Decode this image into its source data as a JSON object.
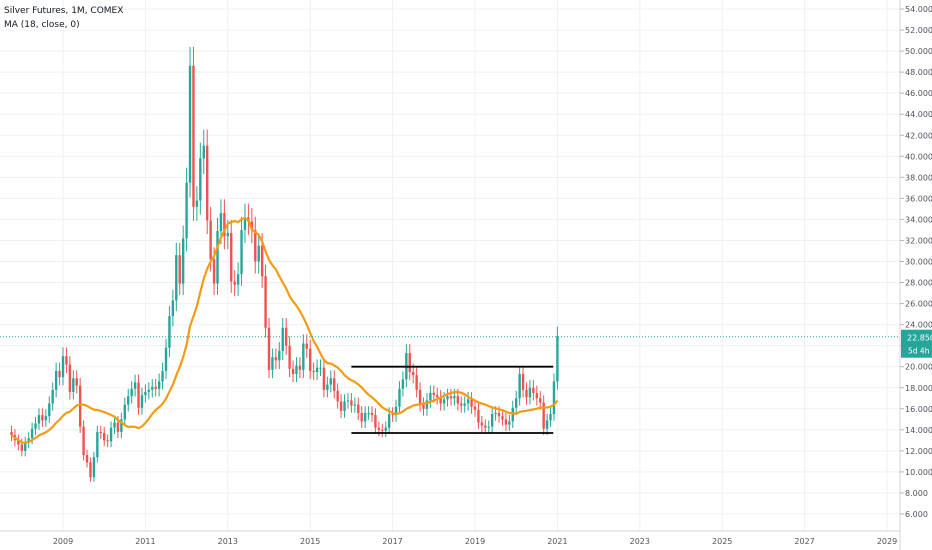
{
  "legend": {
    "symbol_line": "Silver Futures, 1M, COMEX",
    "indicator_line": "MA (18, close, 0)"
  },
  "price_badge": {
    "price": "22.850",
    "countdown": "5d 4h"
  },
  "colors": {
    "up": "#26a69a",
    "down": "#ef5350",
    "ma": "#f39c12",
    "badge": "#26a69a",
    "grid": "#eef0f3",
    "axis_text": "#50535e"
  },
  "chart_data": {
    "type": "candlestick",
    "title": "Silver Futures, 1M, COMEX",
    "x_ticks": [
      "2009",
      "2011",
      "2013",
      "2015",
      "2017",
      "2019",
      "2021",
      "2023",
      "2025",
      "2027",
      "2029"
    ],
    "x_range": [
      2007.75,
      2029.8
    ],
    "y_ticks": [
      "6.000",
      "8.000",
      "10.000",
      "12.000",
      "14.000",
      "16.000",
      "18.000",
      "20.000",
      "22.000",
      "24.000",
      "26.000",
      "28.000",
      "30.000",
      "32.000",
      "34.000",
      "36.000",
      "38.000",
      "40.000",
      "42.000",
      "44.000",
      "46.000",
      "48.000",
      "50.000",
      "52.000",
      "54.000"
    ],
    "ylim": [
      4.5,
      54.9
    ],
    "grid": true,
    "candle_closes": [
      13.5,
      13.0,
      12.6,
      12.0,
      12.8,
      13.2,
      14.1,
      14.6,
      15.4,
      14.9,
      15.3,
      16.5,
      17.8,
      19.6,
      19.0,
      21.0,
      20.2,
      17.6,
      18.9,
      18.2,
      14.3,
      11.6,
      10.9,
      9.5,
      11.4,
      13.8,
      13.7,
      13.0,
      12.9,
      14.2,
      14.7,
      13.8,
      15.0,
      16.4,
      17.2,
      17.9,
      18.5,
      16.1,
      17.3,
      17.6,
      17.8,
      18.1,
      17.9,
      18.6,
      19.6,
      21.8,
      24.8,
      26.3,
      30.6,
      27.9,
      32.2,
      37.5,
      48.6,
      35.2,
      35.8,
      39.8,
      41.0,
      33.9,
      30.2,
      27.9,
      32.9,
      34.6,
      32.4,
      32.7,
      28.1,
      27.8,
      28.8,
      33.0,
      34.2,
      33.8,
      33.0,
      30.0,
      31.5,
      28.6,
      23.7,
      19.7,
      20.9,
      20.6,
      21.5,
      23.7,
      22.0,
      19.8,
      19.3,
      20.1,
      19.7,
      22.2,
      21.7,
      19.6,
      19.5,
      19.9,
      19.9,
      17.8,
      18.3,
      18.9,
      17.7,
      16.7,
      15.8,
      16.7,
      16.8,
      16.3,
      16.4,
      15.6,
      14.8,
      15.6,
      15.6,
      15.4,
      14.2,
      14.0,
      13.9,
      14.2,
      15.5,
      15.4,
      16.2,
      17.9,
      18.8,
      21.3,
      19.5,
      19.2,
      17.8,
      16.4,
      16.0,
      16.8,
      17.5,
      17.3,
      17.1,
      16.5,
      16.9,
      17.2,
      17.0,
      17.2,
      16.5,
      16.3,
      16.5,
      16.9,
      16.2,
      15.9,
      14.7,
      14.4,
      14.2,
      14.3,
      15.5,
      15.6,
      15.3,
      15.0,
      14.5,
      14.8,
      16.1,
      17.0,
      19.3,
      17.8,
      17.1,
      18.0,
      17.5,
      17.0,
      16.6,
      14.1,
      14.9,
      15.5,
      18.6,
      22.9
    ],
    "ma_period": 18,
    "horizontal_lines": [
      {
        "y": 20.0,
        "x_from": 2016.0,
        "x_to": 2020.9
      },
      {
        "y": 13.7,
        "x_from": 2016.0,
        "x_to": 2020.9
      }
    ],
    "last_price": 22.85
  }
}
